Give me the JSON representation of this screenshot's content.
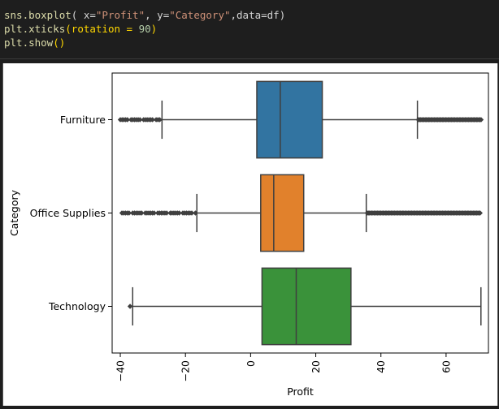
{
  "code": {
    "line1_fn": "sns.boxplot",
    "line1_args_a": "( x=",
    "line1_str1": "\"Profit\"",
    "line1_args_b": ", y=",
    "line1_str2": "\"Category\"",
    "line1_args_c": ",data=df)",
    "line2_fn": "plt.xticks",
    "line2_args_a": "(rotation = ",
    "line2_num": "90",
    "line2_args_b": ")",
    "line3_fn": "plt.show",
    "line3_args": "()"
  },
  "chart_data": {
    "type": "box",
    "orientation": "horizontal",
    "xlabel": "Profit",
    "ylabel": "Category",
    "xlim": [
      -42.5,
      73
    ],
    "xticks": [
      -40,
      -20,
      0,
      20,
      40,
      60
    ],
    "xtick_labels": [
      "−40",
      "−20",
      "0",
      "20",
      "40",
      "60"
    ],
    "xtick_rotation": 90,
    "grid": false,
    "categories": [
      "Furniture",
      "Office Supplies",
      "Technology"
    ],
    "boxes": [
      {
        "category": "Furniture",
        "color": "#3274a1",
        "whislo": -27.2,
        "q1": 1.9,
        "med": 9.1,
        "q3": 22.0,
        "whishi": 51.2,
        "fliers_low_range": [
          -40.0,
          -27.5
        ],
        "fliers_high_range": [
          51.5,
          70.8
        ]
      },
      {
        "category": "Office Supplies",
        "color": "#e1812c",
        "whislo": -16.5,
        "q1": 3.1,
        "med": 7.1,
        "q3": 16.3,
        "whishi": 35.5,
        "fliers_low_range": [
          -39.5,
          -16.8
        ],
        "fliers_high_range": [
          35.8,
          70.5
        ]
      },
      {
        "category": "Technology",
        "color": "#3a923a",
        "whislo": -36.2,
        "q1": 3.5,
        "med": 14.0,
        "q3": 30.8,
        "whishi": 70.7,
        "fliers_low_range": [
          -37.0,
          -36.6
        ],
        "fliers_high_range": []
      }
    ]
  }
}
